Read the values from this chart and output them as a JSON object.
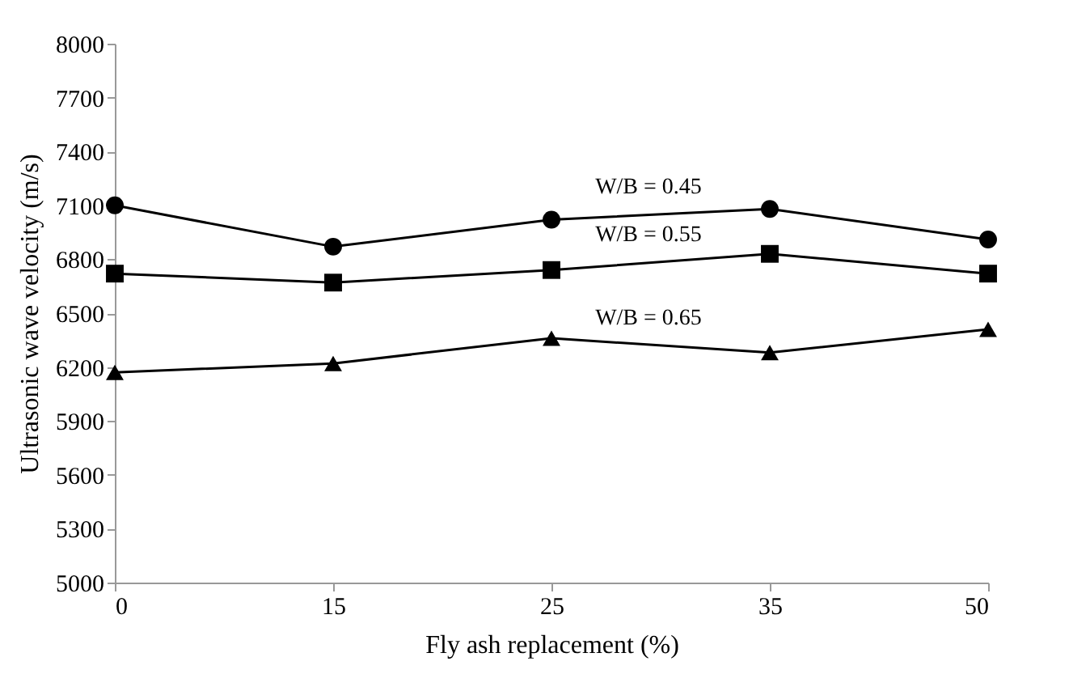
{
  "chart_data": {
    "type": "line",
    "xlabel": "Fly ash replacement (%)",
    "ylabel": "Ultrasonic wave velocity (m/s)",
    "categories": [
      "0",
      "15",
      "25",
      "35",
      "50"
    ],
    "series": [
      {
        "name": "W/B = 0.45",
        "color": "#000000",
        "marker": "circle",
        "values": [
          7100,
          6870,
          7020,
          7080,
          6910
        ]
      },
      {
        "name": "W/B = 0.55",
        "color": "#000000",
        "marker": "square",
        "values": [
          6720,
          6670,
          6740,
          6830,
          6720
        ]
      },
      {
        "name": "W/B = 0.65",
        "color": "#000000",
        "marker": "triangle",
        "values": [
          6170,
          6220,
          6360,
          6280,
          6410
        ]
      }
    ],
    "ylim": [
      5000,
      8000
    ],
    "yticks": [
      5000,
      5300,
      5600,
      5900,
      6200,
      6500,
      6800,
      7100,
      7400,
      7700,
      8000
    ],
    "grid": false
  }
}
